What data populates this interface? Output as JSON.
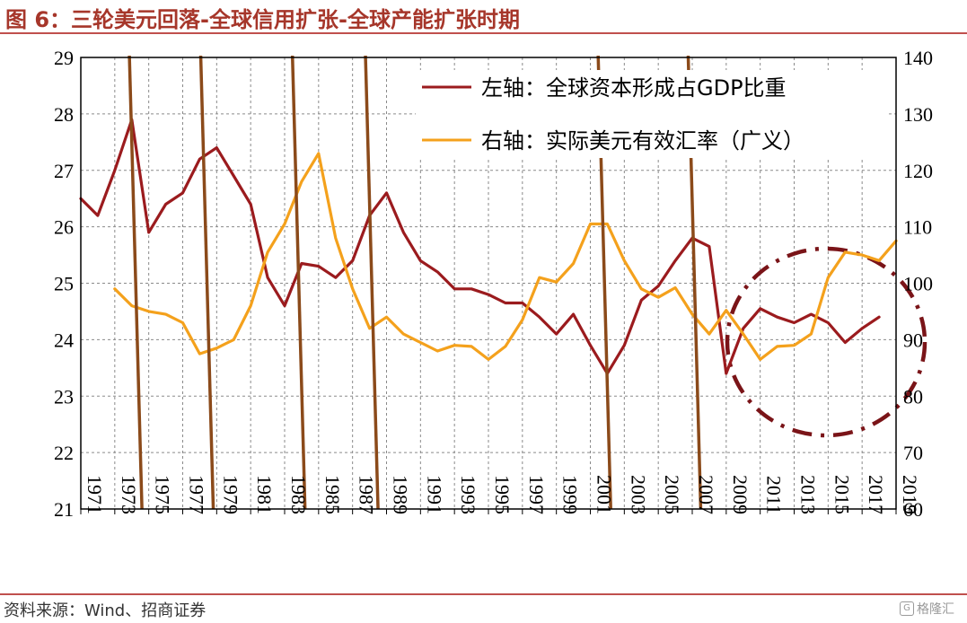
{
  "figure": {
    "title": "图 6：三轮美元回落-全球信用扩张-全球产能扩张时期",
    "source": "资料来源：Wind、招商证券",
    "watermark": "格隆汇"
  },
  "colors": {
    "investment": "#9b1b1e",
    "dollar": "#f4a11c",
    "markers": "#8b4a1a",
    "circle": "#7a1418",
    "rule": "#c0504d"
  },
  "chart_data": {
    "type": "line",
    "grid": true,
    "legend_position": "top-right",
    "x_ticks": [
      "1971",
      "1973",
      "1975",
      "1977",
      "1979",
      "1981",
      "1983",
      "1985",
      "1987",
      "1989",
      "1991",
      "1993",
      "1995",
      "1997",
      "1999",
      "2001",
      "2003",
      "2005",
      "2007",
      "2009",
      "2011",
      "2013",
      "2015",
      "2017",
      "2019"
    ],
    "xlim": [
      1971,
      2019
    ],
    "left_axis": {
      "ylim": [
        21,
        29
      ],
      "ticks": [
        "21",
        "22",
        "23",
        "24",
        "25",
        "26",
        "27",
        "28",
        "29"
      ]
    },
    "right_axis": {
      "ylim": [
        60,
        140
      ],
      "ticks": [
        "60",
        "70",
        "80",
        "90",
        "100",
        "110",
        "120",
        "130",
        "140"
      ]
    },
    "series": [
      {
        "name": "左轴：全球资本形成占GDP比重",
        "axis": "left",
        "x": [
          1971,
          1972,
          1973,
          1974,
          1975,
          1976,
          1977,
          1978,
          1979,
          1980,
          1981,
          1982,
          1983,
          1984,
          1985,
          1986,
          1987,
          1988,
          1989,
          1990,
          1991,
          1992,
          1993,
          1994,
          1995,
          1996,
          1997,
          1998,
          1999,
          2000,
          2001,
          2002,
          2003,
          2004,
          2005,
          2006,
          2007,
          2008,
          2009,
          2010,
          2011,
          2012,
          2013,
          2014,
          2015,
          2016,
          2017,
          2018
        ],
        "values": [
          26.5,
          26.2,
          27.0,
          27.9,
          25.9,
          26.4,
          26.6,
          27.2,
          27.4,
          26.9,
          26.4,
          25.1,
          24.6,
          25.35,
          25.3,
          25.1,
          25.4,
          26.2,
          26.6,
          25.9,
          25.4,
          25.2,
          24.9,
          24.9,
          24.8,
          24.65,
          24.65,
          24.4,
          24.1,
          24.45,
          23.9,
          23.4,
          23.9,
          24.7,
          24.95,
          25.4,
          25.8,
          25.65,
          23.4,
          24.2,
          24.55,
          24.4,
          24.3,
          24.45,
          24.3,
          23.95,
          24.2,
          24.4
        ]
      },
      {
        "name": "右轴：实际美元有效汇率（广义）",
        "axis": "right",
        "x": [
          1973,
          1974,
          1975,
          1976,
          1977,
          1978,
          1979,
          1980,
          1981,
          1982,
          1983,
          1984,
          1985,
          1986,
          1987,
          1988,
          1989,
          1990,
          1991,
          1992,
          1993,
          1994,
          1995,
          1996,
          1997,
          1998,
          1999,
          2000,
          2001,
          2002,
          2003,
          2004,
          2005,
          2006,
          2007,
          2008,
          2009,
          2010,
          2011,
          2012,
          2013,
          2014,
          2015,
          2016,
          2017,
          2018,
          2019
        ],
        "values": [
          99,
          96,
          95,
          94.5,
          93,
          87.5,
          88.5,
          90,
          96,
          105.5,
          110.5,
          118,
          123,
          108,
          99,
          92,
          94,
          91,
          89.5,
          88,
          89,
          88.8,
          86.5,
          88.8,
          93.5,
          101,
          100.2,
          103.5,
          110.5,
          110.5,
          104,
          99,
          97.5,
          99.2,
          94.5,
          91,
          95.2,
          91,
          86.5,
          88.8,
          89,
          91,
          101,
          105.5,
          105,
          104,
          107.5
        ]
      }
    ],
    "markers": [
      1974.6,
      1978.8,
      1984.2,
      1988.5,
      2002.2,
      2007.5
    ]
  }
}
